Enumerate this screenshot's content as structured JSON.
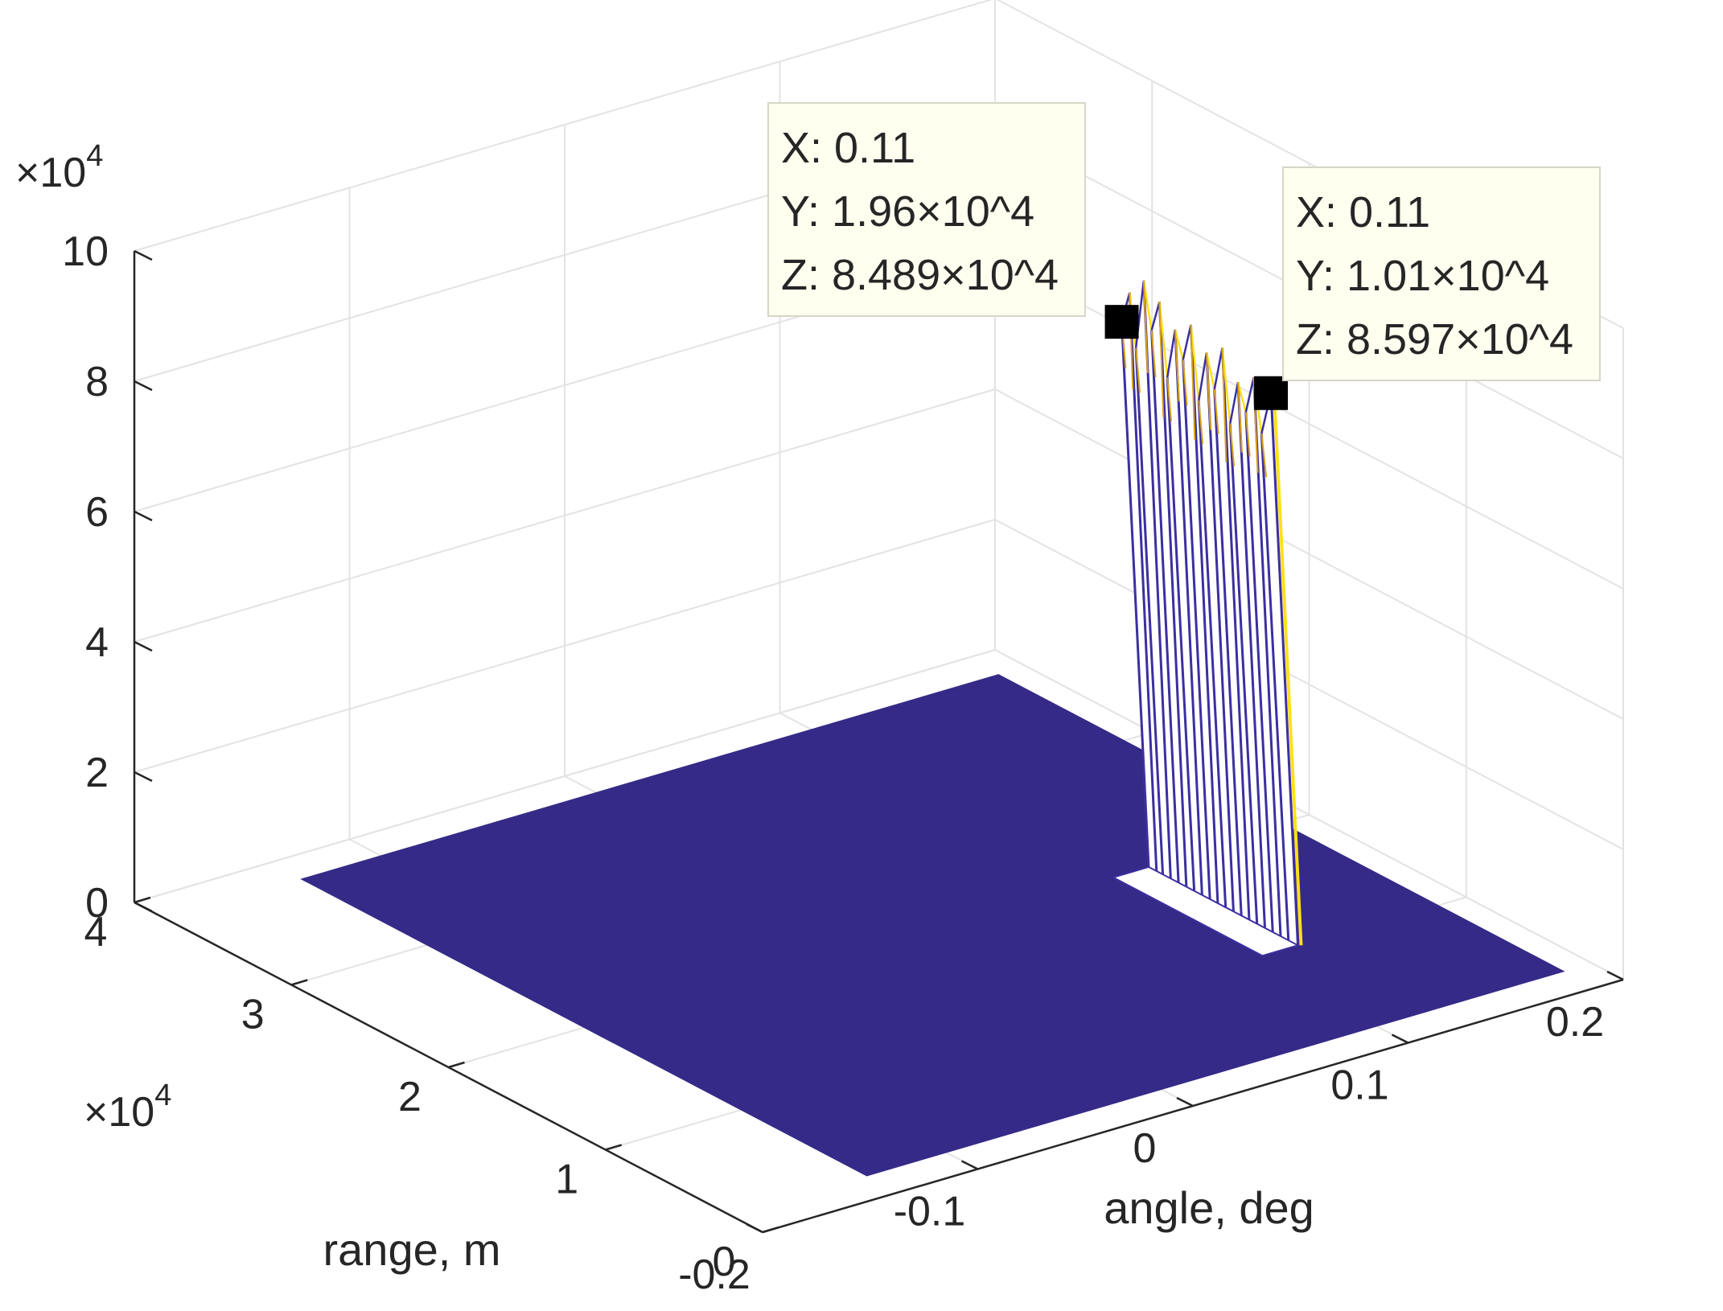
{
  "chart_data": {
    "type": "surface",
    "xlabel": "angle, deg",
    "ylabel": "range, m",
    "zlabel": "",
    "xlim": [
      -0.2,
      0.2
    ],
    "ylim": [
      0,
      40000
    ],
    "zlim": [
      0,
      100000
    ],
    "xticks": [
      "-0.2",
      "-0.1",
      "0",
      "0.1",
      "0.2"
    ],
    "yticks": [
      "0",
      "1",
      "2",
      "3",
      "4"
    ],
    "zticks": [
      "0",
      "2",
      "4",
      "6",
      "8",
      "10"
    ],
    "y_multiplier": {
      "base": "×10",
      "exp": "4"
    },
    "z_multiplier": {
      "base": "×10",
      "exp": "4"
    },
    "grid": true,
    "floor_color": "#352a87",
    "peak_colors": {
      "line": "#3c2fa0",
      "highlight": "#ffe01a"
    },
    "peak_region": {
      "x": 0.11,
      "y_range": [
        10100,
        19600
      ],
      "z_range": [
        0,
        93000
      ],
      "spikes": [
        {
          "y": 19600,
          "z": 84890
        },
        {
          "y": 19100,
          "z": 90000
        },
        {
          "y": 18700,
          "z": 82000
        },
        {
          "y": 18200,
          "z": 93000
        },
        {
          "y": 17700,
          "z": 86000
        },
        {
          "y": 17200,
          "z": 91000
        },
        {
          "y": 16700,
          "z": 80000
        },
        {
          "y": 16200,
          "z": 88000
        },
        {
          "y": 15700,
          "z": 84000
        },
        {
          "y": 15200,
          "z": 90000
        },
        {
          "y": 14700,
          "z": 79000
        },
        {
          "y": 14200,
          "z": 87000
        },
        {
          "y": 13700,
          "z": 82000
        },
        {
          "y": 13200,
          "z": 89000
        },
        {
          "y": 12700,
          "z": 78000
        },
        {
          "y": 12200,
          "z": 85000
        },
        {
          "y": 11700,
          "z": 81000
        },
        {
          "y": 11200,
          "z": 87000
        },
        {
          "y": 10700,
          "z": 79000
        },
        {
          "y": 10100,
          "z": 85970
        }
      ]
    },
    "datatips": [
      {
        "x": "X: 0.11",
        "y": "Y: 1.96×10^4",
        "z": "Z: 8.489×10^4",
        "point": {
          "x": 0.11,
          "y": 19600,
          "z": 84890
        }
      },
      {
        "x": "X: 0.11",
        "y": "Y: 1.01×10^4",
        "z": "Z: 8.597×10^4",
        "point": {
          "x": 0.11,
          "y": 10100,
          "z": 85970
        }
      }
    ]
  }
}
